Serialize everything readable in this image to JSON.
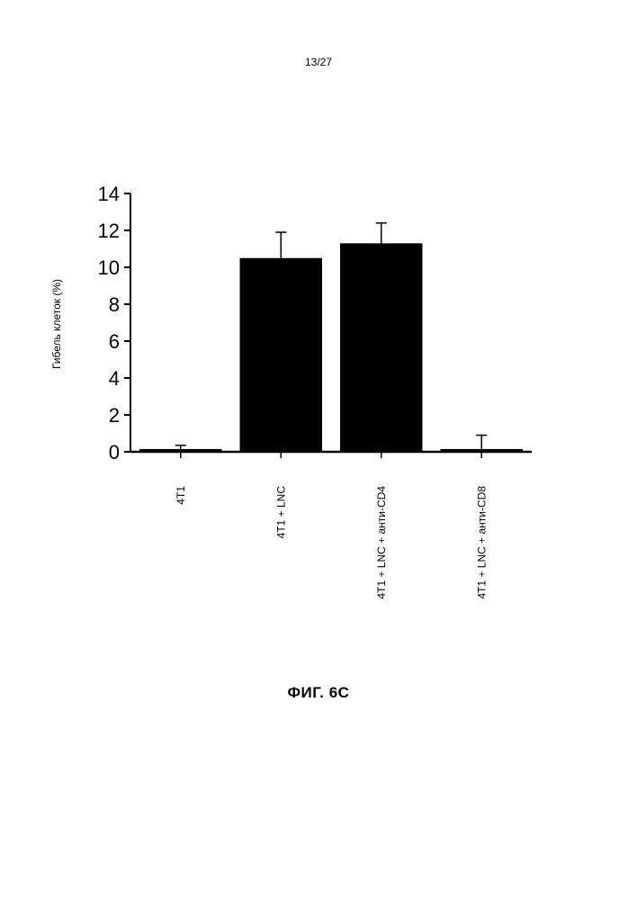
{
  "page_number": "13/27",
  "figure_caption": "ФИГ. 6С",
  "chart_data": {
    "type": "bar",
    "ylabel": "Гибель клеток (%)",
    "xlabel": "",
    "ylim": [
      0,
      14
    ],
    "yticks": [
      0,
      2,
      4,
      6,
      8,
      10,
      12,
      14
    ],
    "categories": [
      "4T1",
      "4T1 + LNC",
      "4T1 + LNC + анти-CD4",
      "4T1 + LNC + анти-CD8"
    ],
    "values": [
      0.15,
      10.5,
      11.3,
      0.15
    ],
    "errors": [
      0.2,
      1.4,
      1.1,
      0.75
    ],
    "bar_color": "#000000",
    "grid": false,
    "legend": "none"
  }
}
